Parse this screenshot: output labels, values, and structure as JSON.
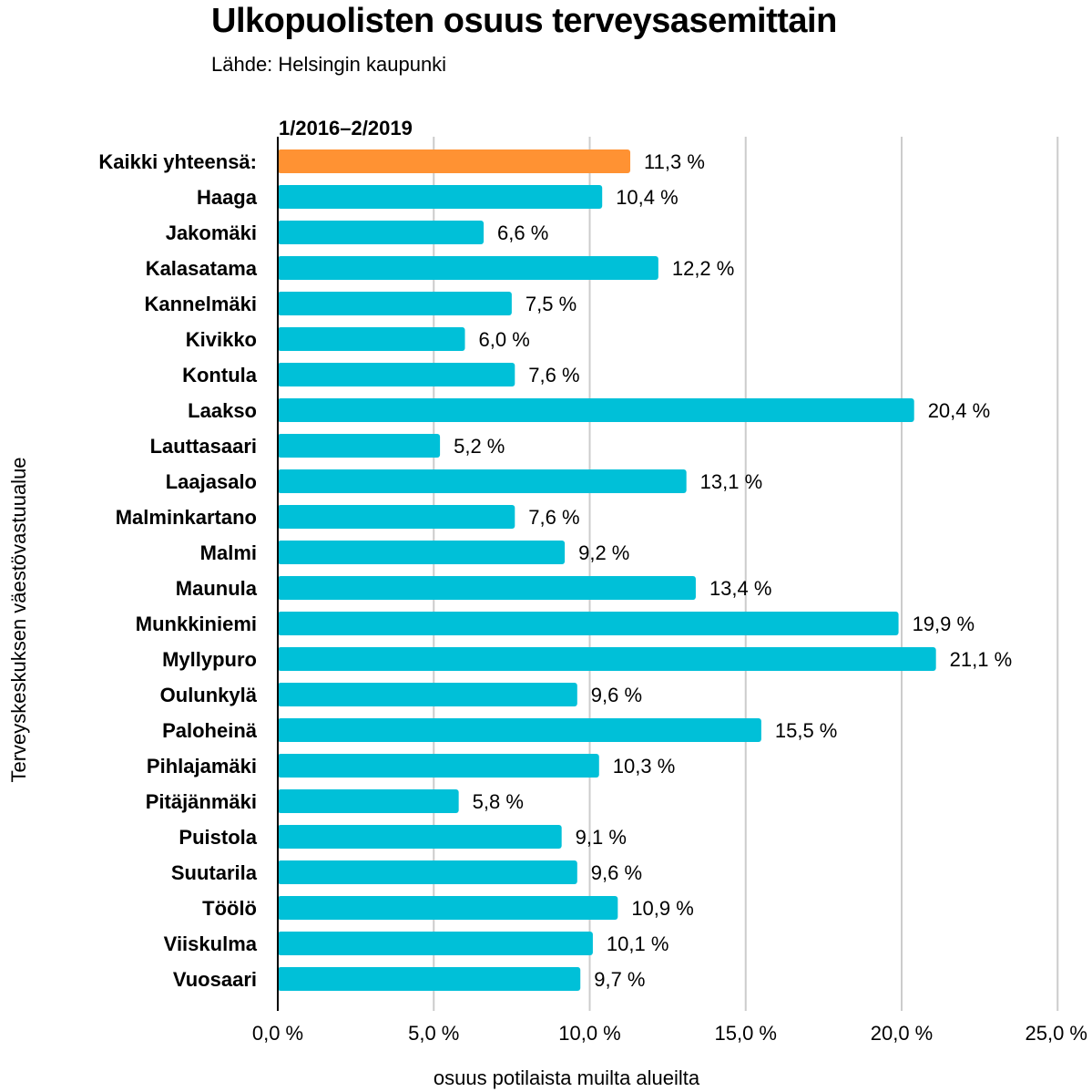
{
  "title": "Ulkopuolisten osuus terveysasemittain",
  "subtitle": "Lähde: Helsingin kaupunki",
  "chart_data": {
    "type": "bar",
    "orientation": "horizontal",
    "period_label": "1/2016–2/2019",
    "xlabel": "osuus potilaista muilta alueilta",
    "ylabel": "Terveyskeskuksen väestövastuualue",
    "xlim": [
      0,
      25
    ],
    "xticks": [
      "0,0 %",
      "5,0 %",
      "10,0 %",
      "15,0 %",
      "20,0 %",
      "25,0 %"
    ],
    "grid": "vertical",
    "colors": {
      "total": "#ff9233",
      "default": "#00c0d8",
      "grid": "#cccccc",
      "axis": "#000000"
    },
    "categories": [
      "Kaikki yhteensä:",
      "Haaga",
      "Jakomäki",
      "Kalasatama",
      "Kannelmäki",
      "Kivikko",
      "Kontula",
      "Laakso",
      "Lauttasaari",
      "Laajasalo",
      "Malminkartano",
      "Malmi",
      "Maunula",
      "Munkkiniemi",
      "Myllypuro",
      "Oulunkylä",
      "Paloheinä",
      "Pihlajamäki",
      "Pitäjänmäki",
      "Puistola",
      "Suutarila",
      "Töölö",
      "Viiskulma",
      "Vuosaari"
    ],
    "values": [
      11.3,
      10.4,
      6.6,
      12.2,
      7.5,
      6.0,
      7.6,
      20.4,
      5.2,
      13.1,
      7.6,
      9.2,
      13.4,
      19.9,
      21.1,
      9.6,
      15.5,
      10.3,
      5.8,
      9.1,
      9.6,
      10.9,
      10.1,
      9.7
    ],
    "value_labels": [
      "11,3 %",
      "10,4 %",
      "6,6 %",
      "12,2 %",
      "7,5 %",
      "6,0 %",
      "7,6 %",
      "20,4 %",
      "5,2 %",
      "13,1 %",
      "7,6 %",
      "9,2 %",
      "13,4 %",
      "19,9 %",
      "21,1 %",
      "9,6 %",
      "15,5 %",
      "10,3 %",
      "5,8 %",
      "9,1 %",
      "9,6 %",
      "10,9 %",
      "10,1 %",
      "9,7 %"
    ],
    "highlight_index": 0
  }
}
